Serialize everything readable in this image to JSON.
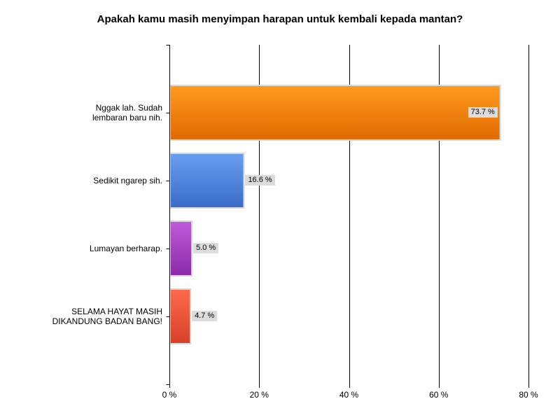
{
  "chart_data": {
    "type": "bar",
    "orientation": "horizontal",
    "title": "Apakah kamu masih menyimpan harapan untuk kembali kepada mantan?",
    "xlabel": "",
    "ylabel": "",
    "xlim": [
      0,
      80
    ],
    "grid": true,
    "categories": [
      [
        "Nggak lah. Sudah",
        "lembaran baru nih."
      ],
      [
        "Sedikit ngarep sih."
      ],
      [
        "Lumayan berharap."
      ],
      [
        "SELAMA HAYAT MASIH",
        "DIKANDUNG BADAN BANG!"
      ]
    ],
    "values": [
      73.7,
      16.6,
      5.0,
      4.7
    ],
    "value_labels": [
      "73.7 %",
      "16.6 %",
      "5.0 %",
      "4.7 %"
    ],
    "ticks": [
      0,
      20,
      40,
      60,
      80
    ],
    "tick_labels": [
      "0 %",
      "20 %",
      "40 %",
      "60 %",
      "80 %"
    ],
    "colors": [
      {
        "top": "#ff9a1e",
        "bottom": "#e06a00"
      },
      {
        "top": "#6a9ef0",
        "bottom": "#3a6cc8"
      },
      {
        "top": "#c05ad8",
        "bottom": "#8a2aa8"
      },
      {
        "top": "#ff6a4a",
        "bottom": "#d8402a"
      }
    ]
  }
}
